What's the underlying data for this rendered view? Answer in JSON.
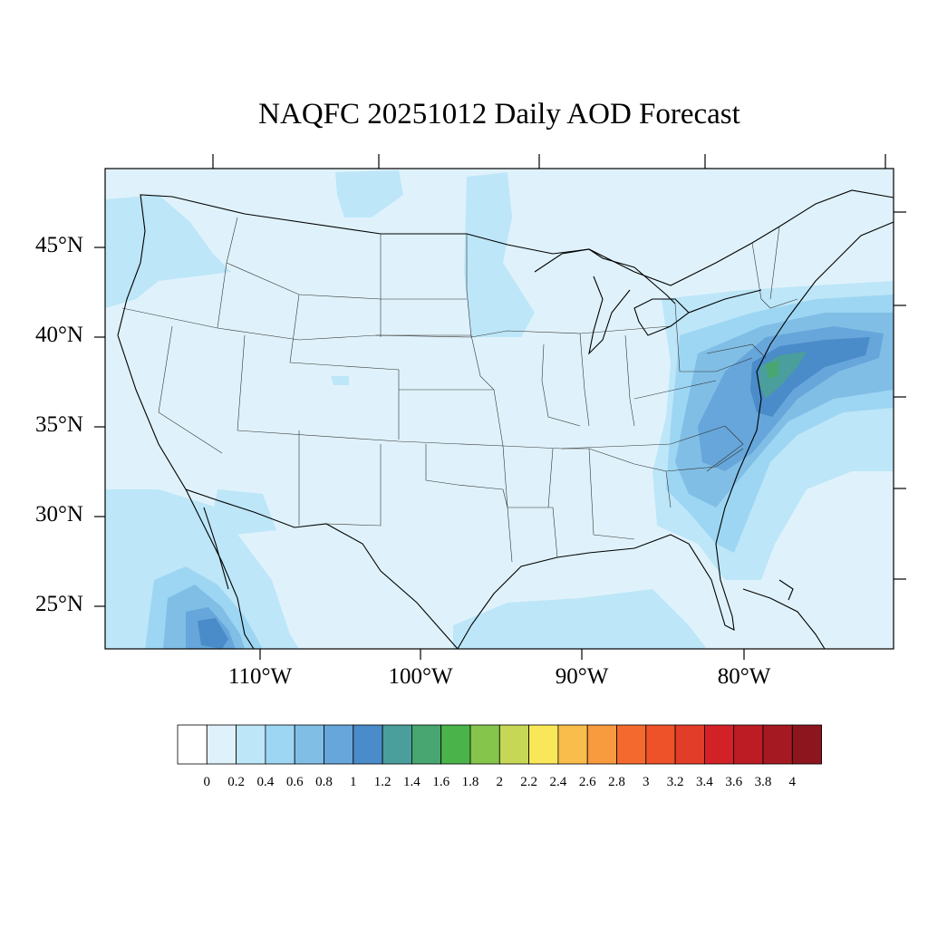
{
  "title": "NAQFC 20251012 Daily AOD Forecast",
  "map": {
    "projection": "lambert-conformal",
    "region": "Continental United States",
    "lat_labels": [
      "45°N",
      "40°N",
      "35°N",
      "30°N",
      "25°N"
    ],
    "lon_labels": [
      "110°W",
      "100°W",
      "90°W",
      "80°W"
    ],
    "background_level_color": "#dff2fb",
    "aod_features": [
      {
        "name": "mid-atlantic-plume",
        "peak_aod": 1.5
      },
      {
        "name": "baja-plume",
        "peak_aod": 1.1
      },
      {
        "name": "southeast-coast-haze",
        "peak_aod": 0.7
      },
      {
        "name": "pacific-northwest-haze",
        "peak_aod": 0.4
      }
    ]
  },
  "colorbar": {
    "labels": [
      "0",
      "0.2",
      "0.4",
      "0.6",
      "0.8",
      "1",
      "1.2",
      "1.4",
      "1.6",
      "1.8",
      "2",
      "2.2",
      "2.4",
      "2.6",
      "2.8",
      "3",
      "3.2",
      "3.4",
      "3.6",
      "3.8",
      "4"
    ],
    "colors": [
      "#ffffff",
      "#dff2fb",
      "#bde6f8",
      "#9dd6f3",
      "#80bee5",
      "#66a6da",
      "#4a8bc9",
      "#4a9e9c",
      "#48a670",
      "#4ab44a",
      "#85c54c",
      "#c5d755",
      "#f9e75a",
      "#f9bd4b",
      "#f89a3e",
      "#f46a2e",
      "#ee5229",
      "#e23d28",
      "#d32128",
      "#bd1c25",
      "#a51a22",
      "#8c151e"
    ]
  }
}
